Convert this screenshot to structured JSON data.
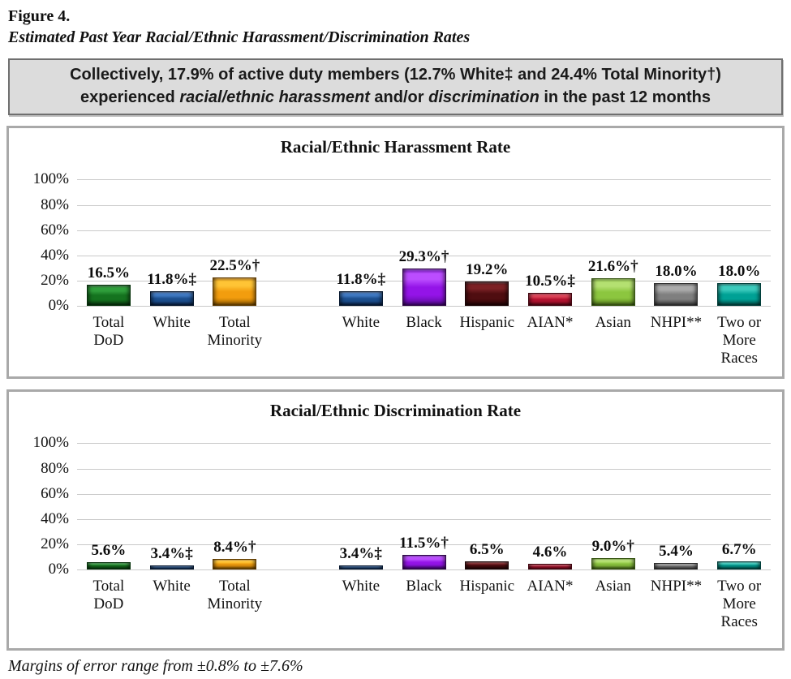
{
  "figure": {
    "label": "Figure 4.",
    "subtitle": "Estimated Past Year Racial/Ethnic Harassment/Discrimination Rates"
  },
  "summary_box": {
    "line1": "Collectively, 17.9% of active duty members (12.7% White‡ and 24.4% Total Minority†)",
    "line2_segments": [
      {
        "text": "experienced ",
        "italic": false
      },
      {
        "text": "racial/ethnic harassment",
        "italic": true
      },
      {
        "text": " and/or ",
        "italic": false
      },
      {
        "text": "discrimination",
        "italic": true
      },
      {
        "text": " in the past 12 months",
        "italic": false
      }
    ]
  },
  "footnote": "Margins of error range from ±0.8% to ±7.6%",
  "colors": {
    "green": {
      "light": "#2f9e3b",
      "mid": "#15731f",
      "dark": "#0b4513",
      "outline": "#05300a"
    },
    "blue": {
      "light": "#3e77c0",
      "mid": "#1c4f8f",
      "dark": "#0d2d5e",
      "outline": "#06172e"
    },
    "orange": {
      "light": "#ffc435",
      "mid": "#f29d0e",
      "dark": "#a96a02",
      "outline": "#5e3a00"
    },
    "purple": {
      "light": "#bb4dff",
      "mid": "#9414e8",
      "dark": "#5c0b9e",
      "outline": "#2d0545"
    },
    "maroon": {
      "light": "#7c2125",
      "mid": "#4f0d10",
      "dark": "#2e0608",
      "outline": "#1c0405"
    },
    "red": {
      "light": "#d94055",
      "mid": "#b51230",
      "dark": "#7c0a1c",
      "outline": "#40040e"
    },
    "yellowgreen": {
      "light": "#b4e071",
      "mid": "#8cc63f",
      "dark": "#5f8c20",
      "outline": "#33520e"
    },
    "gray": {
      "light": "#ababab",
      "mid": "#7f7f7f",
      "dark": "#4f4f4f",
      "outline": "#2e2e2e"
    },
    "teal": {
      "light": "#3bcabc",
      "mid": "#00a195",
      "dark": "#00655e",
      "outline": "#003d39"
    }
  },
  "chart_data": [
    {
      "type": "bar",
      "title": "Racial/Ethnic Harassment Rate",
      "xlabel": "",
      "ylabel": "",
      "ylim": [
        0,
        100
      ],
      "yticks": [
        "0%",
        "20%",
        "40%",
        "60%",
        "80%",
        "100%"
      ],
      "grid": true,
      "bars": [
        {
          "label": "Total DoD",
          "value": 16.5,
          "display": "16.5%",
          "color": "green"
        },
        {
          "label": "White",
          "value": 11.8,
          "display": "11.8%‡",
          "color": "blue"
        },
        {
          "label": "Total Minority",
          "value": 22.5,
          "display": "22.5%†",
          "color": "orange"
        },
        {
          "gap": true
        },
        {
          "label": "White",
          "value": 11.8,
          "display": "11.8%‡",
          "color": "blue"
        },
        {
          "label": "Black",
          "value": 29.3,
          "display": "29.3%†",
          "color": "purple"
        },
        {
          "label": "Hispanic",
          "value": 19.2,
          "display": "19.2%",
          "color": "maroon"
        },
        {
          "label": "AIAN*",
          "value": 10.5,
          "display": "10.5%‡",
          "color": "red"
        },
        {
          "label": "Asian",
          "value": 21.6,
          "display": "21.6%†",
          "color": "yellowgreen"
        },
        {
          "label": "NHPI**",
          "value": 18.0,
          "display": "18.0%",
          "color": "gray"
        },
        {
          "label": "Two or More Races",
          "value": 18.0,
          "display": "18.0%",
          "color": "teal"
        }
      ]
    },
    {
      "type": "bar",
      "title": "Racial/Ethnic Discrimination Rate",
      "xlabel": "",
      "ylabel": "",
      "ylim": [
        0,
        100
      ],
      "yticks": [
        "0%",
        "20%",
        "40%",
        "60%",
        "80%",
        "100%"
      ],
      "grid": true,
      "bars": [
        {
          "label": "Total DoD",
          "value": 5.6,
          "display": "5.6%",
          "color": "green"
        },
        {
          "label": "White",
          "value": 3.4,
          "display": "3.4%‡",
          "color": "blue"
        },
        {
          "label": "Total Minority",
          "value": 8.4,
          "display": "8.4%†",
          "color": "orange"
        },
        {
          "gap": true
        },
        {
          "label": "White",
          "value": 3.4,
          "display": "3.4%‡",
          "color": "blue"
        },
        {
          "label": "Black",
          "value": 11.5,
          "display": "11.5%†",
          "color": "purple"
        },
        {
          "label": "Hispanic",
          "value": 6.5,
          "display": "6.5%",
          "color": "maroon"
        },
        {
          "label": "AIAN*",
          "value": 4.6,
          "display": "4.6%",
          "color": "red"
        },
        {
          "label": "Asian",
          "value": 9.0,
          "display": "9.0%†",
          "color": "yellowgreen"
        },
        {
          "label": "NHPI**",
          "value": 5.4,
          "display": "5.4%",
          "color": "gray"
        },
        {
          "label": "Two or More Races",
          "value": 6.7,
          "display": "6.7%",
          "color": "teal"
        }
      ]
    }
  ]
}
